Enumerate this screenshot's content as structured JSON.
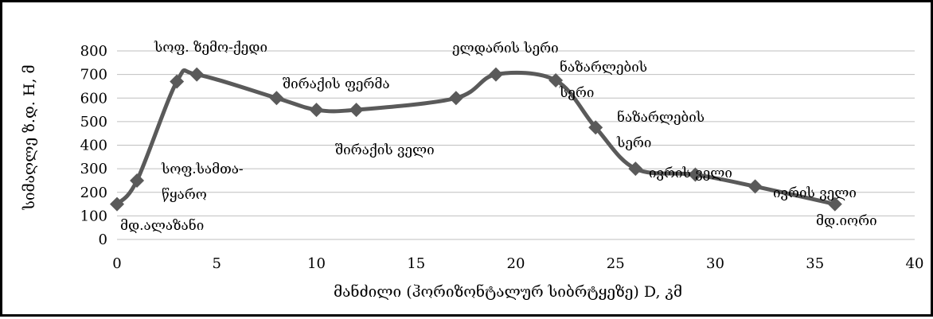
{
  "chart_data": {
    "type": "line",
    "title": "",
    "xlabel": "მანძილი (ჰორიზონტალურ სიბრტყეზე) D, კმ",
    "ylabel": "სიმაღლე ზ.დ. H, მ",
    "xlim": [
      0,
      40
    ],
    "ylim": [
      0,
      800
    ],
    "xticks": [
      0,
      5,
      10,
      15,
      20,
      25,
      30,
      35,
      40
    ],
    "yticks": [
      0,
      100,
      200,
      300,
      400,
      500,
      600,
      700,
      800
    ],
    "grid": "horizontal",
    "marker": "diamond",
    "line_color": "#5a5a5a",
    "smooth": true,
    "series": [
      {
        "points": [
          {
            "x": 0,
            "y": 150
          },
          {
            "x": 1,
            "y": 250
          },
          {
            "x": 3,
            "y": 670
          },
          {
            "x": 4,
            "y": 700
          },
          {
            "x": 8,
            "y": 600
          },
          {
            "x": 10,
            "y": 550
          },
          {
            "x": 12,
            "y": 550
          },
          {
            "x": 17,
            "y": 600
          },
          {
            "x": 19,
            "y": 700
          },
          {
            "x": 22,
            "y": 675
          },
          {
            "x": 24,
            "y": 475
          },
          {
            "x": 26,
            "y": 300
          },
          {
            "x": 29,
            "y": 275
          },
          {
            "x": 32,
            "y": 225
          },
          {
            "x": 36,
            "y": 150
          }
        ]
      }
    ],
    "annotations": [
      {
        "lines": [
          "სოფ. ზემო-ქედი"
        ],
        "anchor": "start"
      },
      {
        "lines": [
          "შირაქის ფერმა"
        ],
        "anchor": "start"
      },
      {
        "lines": [
          "შირაქის ველი"
        ],
        "anchor": "start"
      },
      {
        "lines": [
          "ელდარის სერი"
        ],
        "anchor": "start"
      },
      {
        "lines": [
          "ნაზარლების",
          "სერი"
        ],
        "anchor": "start"
      },
      {
        "lines": [
          "ნაზარლების",
          "სერი"
        ],
        "anchor": "start"
      },
      {
        "lines": [
          "ივრის ველი"
        ],
        "anchor": "start"
      },
      {
        "lines": [
          "ივრის ველი"
        ],
        "anchor": "start"
      },
      {
        "lines": [
          "სოფ.სამთა-",
          "წყარო"
        ],
        "anchor": "start"
      },
      {
        "lines": [
          "მდ.ალაზანი"
        ],
        "anchor": "start"
      },
      {
        "lines": [
          "მდ.იორი"
        ],
        "anchor": "start"
      }
    ]
  }
}
